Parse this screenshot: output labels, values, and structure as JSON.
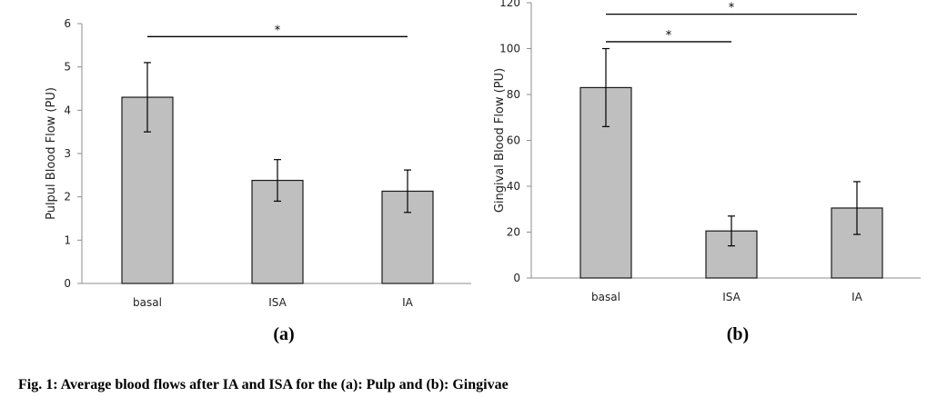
{
  "figure": {
    "caption": "Fig. 1: Average blood flows after IA and ISA for the (a): Pulp and (b): Gingivae"
  },
  "chart_data": [
    {
      "type": "bar",
      "panel_label": "(a)",
      "categories": [
        "basal",
        "ISA",
        "IA"
      ],
      "values": [
        4.3,
        2.38,
        2.13
      ],
      "error": [
        0.8,
        0.48,
        0.49
      ],
      "xlabel": "",
      "ylabel": "Pulpul Blood Flow  (PU)",
      "ylim": [
        0,
        6
      ],
      "yticks": [
        0,
        1,
        2,
        3,
        4,
        5,
        6
      ],
      "grid": false,
      "legend": "none",
      "bar_color": "#bfbfbf",
      "significance": [
        {
          "from": "basal",
          "to": "IA",
          "label": "*",
          "y": 5.7
        }
      ]
    },
    {
      "type": "bar",
      "panel_label": "(b)",
      "categories": [
        "basal",
        "ISA",
        "IA"
      ],
      "values": [
        83,
        20.5,
        30.5
      ],
      "error": [
        17,
        6.5,
        11.5
      ],
      "xlabel": "",
      "ylabel": "Gingival Blood Flow (PU)",
      "ylim": [
        0,
        120
      ],
      "yticks": [
        0,
        20,
        40,
        60,
        80,
        100,
        120
      ],
      "grid": false,
      "legend": "none",
      "bar_color": "#bfbfbf",
      "significance": [
        {
          "from": "basal",
          "to": "ISA",
          "label": "*",
          "y": 103
        },
        {
          "from": "basal",
          "to": "IA",
          "label": "*",
          "y": 115
        }
      ]
    }
  ]
}
